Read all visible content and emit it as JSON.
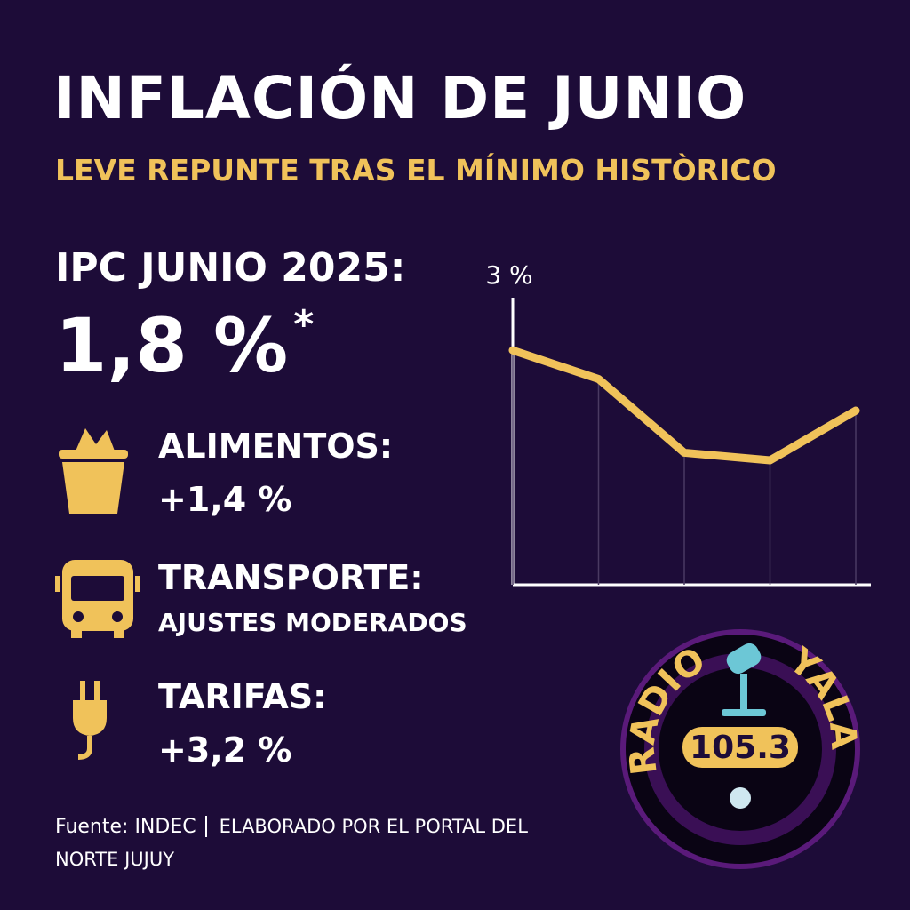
{
  "header": {
    "title": "INFLACIÓN DE JUNIO",
    "subtitle": "LEVE REPUNTE TRAS EL MÍNIMO HISTÒRICO"
  },
  "headline": {
    "label": "IPC JUNIO 2025:",
    "value": "1,8 %",
    "note": "*"
  },
  "items": [
    {
      "label": "ALIMENTOS:",
      "value": "+1,4 %"
    },
    {
      "label": "TRANSPORTE:",
      "value": "AJUSTES MODERADOS"
    },
    {
      "label": "TARIFAS:",
      "value": "+3,2 %"
    }
  ],
  "footer": {
    "source": "Fuente: INDEC",
    "credit": "ELABORADO POR EL PORTAL DEL NORTE JUJUY"
  },
  "logo": {
    "top": "RADIO",
    "right": "YALA",
    "frequency": "105.3"
  },
  "chart_data": {
    "type": "line",
    "categories": [
      null,
      null,
      null,
      null,
      null
    ],
    "values": [
      2.45,
      2.15,
      1.38,
      1.3,
      1.82
    ],
    "color": "#f0c25a",
    "ylim": [
      0,
      3
    ],
    "yticks": [
      {
        "value": 3,
        "label": "3 %"
      }
    ],
    "grid": false
  }
}
